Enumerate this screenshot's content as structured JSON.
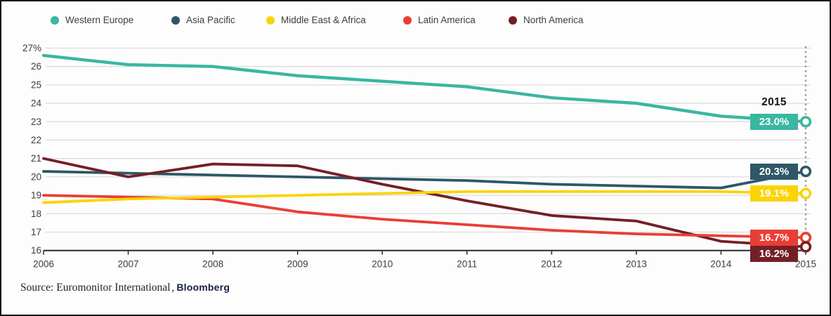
{
  "legend": {
    "items": [
      {
        "label": "Western Europe",
        "color": "#39b7a0"
      },
      {
        "label": "Asia Pacific",
        "color": "#2e5767"
      },
      {
        "label": "Middle East & Africa",
        "color": "#fbd303"
      },
      {
        "label": "Latin America",
        "color": "#e93e33"
      },
      {
        "label": "North America",
        "color": "#741f26"
      }
    ]
  },
  "chart_data": {
    "type": "line",
    "title": "",
    "x": [
      2006,
      2007,
      2008,
      2009,
      2010,
      2011,
      2012,
      2013,
      2014,
      2015
    ],
    "x_tick_labels": [
      "2006",
      "2007",
      "2008",
      "2009",
      "2010",
      "2011",
      "2012",
      "2013",
      "2014",
      "2015"
    ],
    "ylim": [
      16,
      27
    ],
    "grid": true,
    "legend_position": "top",
    "yticks": [
      {
        "label": "27%",
        "value": 27
      },
      {
        "label": "26",
        "value": 26
      },
      {
        "label": "25",
        "value": 25
      },
      {
        "label": "24",
        "value": 24
      },
      {
        "label": "23",
        "value": 23
      },
      {
        "label": "22",
        "value": 22
      },
      {
        "label": "21",
        "value": 21
      },
      {
        "label": "20",
        "value": 20
      },
      {
        "label": "19",
        "value": 19
      },
      {
        "label": "18",
        "value": 18
      },
      {
        "label": "17",
        "value": 17
      },
      {
        "label": "16",
        "value": 16
      }
    ],
    "series": [
      {
        "name": "Western Europe",
        "color": "#39b7a0",
        "end_label": "23.0%",
        "values": [
          26.6,
          26.1,
          26.0,
          25.5,
          25.2,
          24.9,
          24.3,
          24.0,
          23.3,
          23.0
        ]
      },
      {
        "name": "Asia Pacific",
        "color": "#2e5767",
        "end_label": "20.3%",
        "values": [
          20.3,
          20.2,
          20.1,
          20.0,
          19.9,
          19.8,
          19.6,
          19.5,
          19.4,
          20.3
        ]
      },
      {
        "name": "Middle East & Africa",
        "color": "#fbd303",
        "end_label": "19.1%",
        "values": [
          18.6,
          18.8,
          18.9,
          19.0,
          19.1,
          19.2,
          19.2,
          19.2,
          19.2,
          19.1
        ]
      },
      {
        "name": "Latin America",
        "color": "#e93e33",
        "end_label": "16.7%",
        "values": [
          19.0,
          18.9,
          18.8,
          18.1,
          17.7,
          17.4,
          17.1,
          16.9,
          16.8,
          16.7
        ]
      },
      {
        "name": "North America",
        "color": "#741f26",
        "end_label": "16.2%",
        "values": [
          21.0,
          20.0,
          20.7,
          20.6,
          19.6,
          18.7,
          17.9,
          17.6,
          16.5,
          16.2
        ]
      }
    ],
    "annotations": {
      "projection_year_callout": "2015"
    }
  },
  "callout": {
    "year": "2015"
  },
  "source": {
    "text": "Source: Euromonitor International",
    "separator": ",",
    "publisher": "Bloomberg"
  }
}
